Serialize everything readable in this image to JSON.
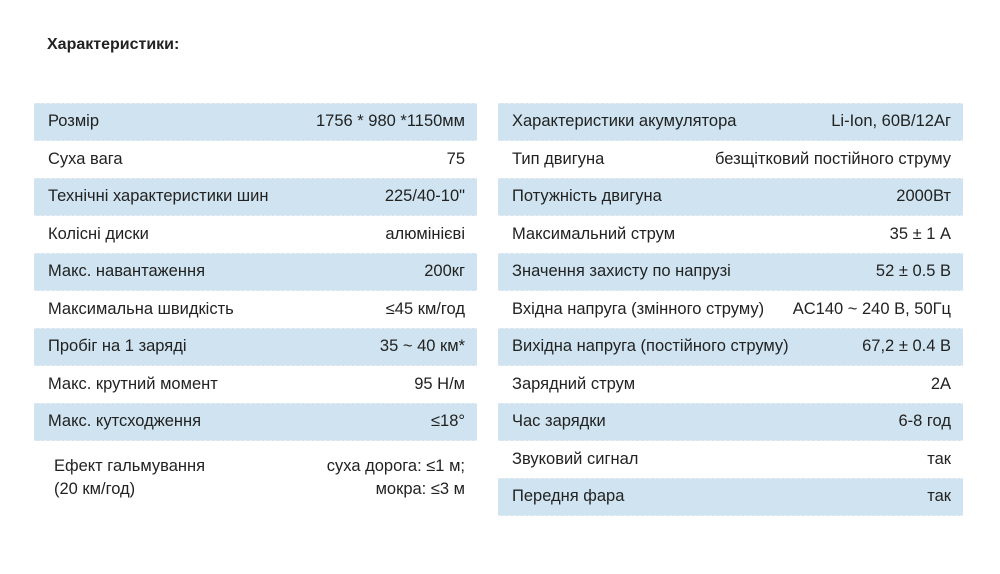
{
  "title": "Характеристики:",
  "left": [
    {
      "label": "Розмір",
      "value": "1756 * 980 *1150мм",
      "highlight": true
    },
    {
      "label": "Суха вага",
      "value": "75",
      "highlight": false
    },
    {
      "label": "Технічні характеристики шин",
      "value": "225/40-10\"",
      "highlight": true
    },
    {
      "label": "Колісні диски",
      "value": "алюмінієві",
      "highlight": false
    },
    {
      "label": "Макс. навантаження",
      "value": "200кг",
      "highlight": true
    },
    {
      "label": "Максимальна швидкість",
      "value": "≤45 км/год",
      "highlight": false
    },
    {
      "label": "Пробіг на 1 заряді",
      "value": "35 ~ 40 км*",
      "highlight": true
    },
    {
      "label": "Макс. крутний момент",
      "value": "95 Н/м",
      "highlight": false
    },
    {
      "label": "Макс. кутсходження",
      "value": "≤18°",
      "highlight": true
    }
  ],
  "brake": {
    "label1": "Ефект гальмування",
    "label2": "(20 км/год)",
    "value1": "суха дорога: ≤1 м;",
    "value2": "мокра: ≤3 м"
  },
  "right": [
    {
      "label": "Характеристики акумулятора",
      "value": "Li-Ion, 60В/12Аг",
      "highlight": true
    },
    {
      "label": "Тип двигуна",
      "value": "безщітковий постійного струму",
      "highlight": false
    },
    {
      "label": "Потужність двигуна",
      "value": "2000Вт",
      "highlight": true
    },
    {
      "label": "Максимальний струм",
      "value": "35 ± 1 А",
      "highlight": false
    },
    {
      "label": "Значення захисту по напрузі",
      "value": "52 ± 0.5 В",
      "highlight": true
    },
    {
      "label": "Вхідна напруга (змінного струму)",
      "value": "AC140 ~ 240 В, 50Гц",
      "highlight": false
    },
    {
      "label": "Вихідна напруга (постійного струму)",
      "value": "67,2 ± 0.4 В",
      "highlight": true
    },
    {
      "label": "Зарядний струм",
      "value": "2А",
      "highlight": false
    },
    {
      "label": "Час зарядки",
      "value": "6-8 год",
      "highlight": true
    },
    {
      "label": "Звуковий сигнал",
      "value": "так",
      "highlight": false
    },
    {
      "label": "Передня фара",
      "value": "так",
      "highlight": true
    }
  ],
  "colors": {
    "highlight": "#cfe4f0",
    "text": "#222222"
  }
}
